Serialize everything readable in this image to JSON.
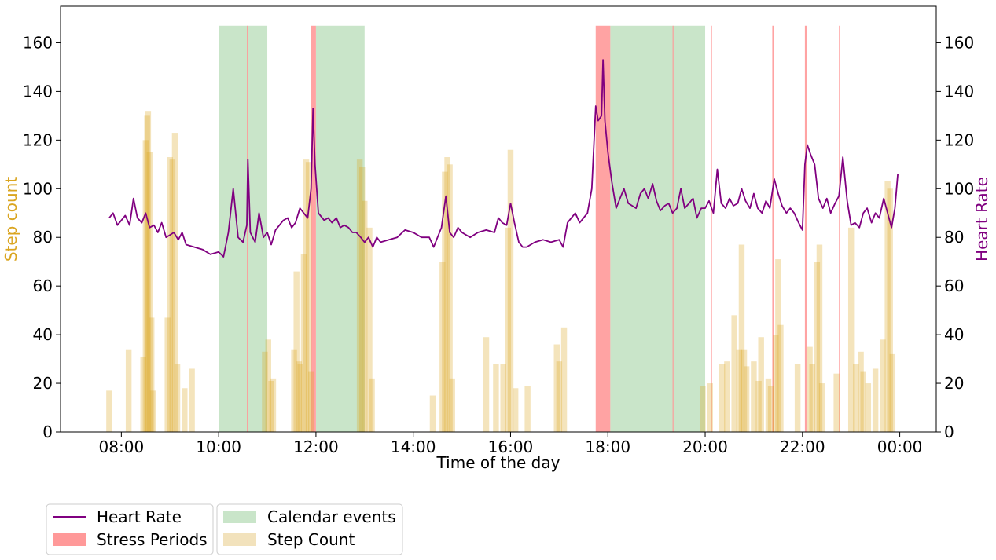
{
  "chart_data": {
    "type": "line",
    "xlabel": "Time of the day",
    "ylabel_left": "Step count",
    "ylabel_right": "Heart Rate",
    "colors": {
      "heart_rate": "#800080",
      "steps": "#DAA520",
      "stress": "#FF9999",
      "calendar": "#C9E5C9",
      "left_label": "#DAA520",
      "right_label": "#800080"
    },
    "x_range_hours": [
      6.75,
      24.75
    ],
    "ylim_left": [
      0,
      175
    ],
    "ylim_right": [
      0,
      175
    ],
    "x_ticks": [
      {
        "hour": 8,
        "label": "08:00"
      },
      {
        "hour": 10,
        "label": "10:00"
      },
      {
        "hour": 12,
        "label": "12:00"
      },
      {
        "hour": 14,
        "label": "14:00"
      },
      {
        "hour": 16,
        "label": "16:00"
      },
      {
        "hour": 18,
        "label": "18:00"
      },
      {
        "hour": 20,
        "label": "20:00"
      },
      {
        "hour": 22,
        "label": "22:00"
      },
      {
        "hour": 24,
        "label": "00:00"
      }
    ],
    "y_ticks": [
      "0",
      "20",
      "40",
      "60",
      "80",
      "100",
      "120",
      "140",
      "160"
    ],
    "legend": {
      "placement": "below-left",
      "entries": [
        {
          "label": "Heart Rate",
          "kind": "line",
          "color": "#800080"
        },
        {
          "label": "Stress Periods",
          "kind": "patch",
          "color": "#FF9999"
        },
        {
          "label": "Calendar events",
          "kind": "patch",
          "color": "#C9E5C9"
        },
        {
          "label": "Step Count",
          "kind": "patch",
          "color": "#F2E2BC"
        }
      ]
    },
    "calendar_events": [
      {
        "start": 10.0,
        "end": 11.0
      },
      {
        "start": 12.0,
        "end": 13.0
      },
      {
        "start": 18.05,
        "end": 20.0
      }
    ],
    "stress_periods": [
      {
        "start": 10.58,
        "end": 10.6
      },
      {
        "start": 11.9,
        "end": 12.0
      },
      {
        "start": 17.75,
        "end": 18.05
      },
      {
        "start": 19.33,
        "end": 19.35
      },
      {
        "start": 20.12,
        "end": 20.14
      },
      {
        "start": 21.38,
        "end": 21.42
      },
      {
        "start": 22.05,
        "end": 22.1
      },
      {
        "start": 22.75,
        "end": 22.77
      }
    ],
    "band_top": 167,
    "series": [
      {
        "name": "Step Count",
        "axis": "left",
        "bar_width_hours": 0.12,
        "points": [
          [
            7.75,
            17
          ],
          [
            8.15,
            34
          ],
          [
            8.45,
            31
          ],
          [
            8.5,
            120
          ],
          [
            8.53,
            130
          ],
          [
            8.55,
            132
          ],
          [
            8.58,
            115
          ],
          [
            8.62,
            47
          ],
          [
            8.65,
            17
          ],
          [
            8.95,
            47
          ],
          [
            9.0,
            113
          ],
          [
            9.05,
            112
          ],
          [
            9.1,
            123
          ],
          [
            9.15,
            28
          ],
          [
            9.3,
            18
          ],
          [
            9.45,
            26
          ],
          [
            10.95,
            33
          ],
          [
            11.02,
            38
          ],
          [
            11.08,
            21
          ],
          [
            11.12,
            22
          ],
          [
            11.55,
            34
          ],
          [
            11.6,
            66
          ],
          [
            11.65,
            29
          ],
          [
            11.68,
            28
          ],
          [
            11.75,
            73
          ],
          [
            11.8,
            112
          ],
          [
            11.85,
            111
          ],
          [
            11.9,
            25
          ],
          [
            12.9,
            112
          ],
          [
            12.95,
            109
          ],
          [
            13.0,
            95
          ],
          [
            13.1,
            84
          ],
          [
            13.15,
            22
          ],
          [
            14.4,
            15
          ],
          [
            14.6,
            70
          ],
          [
            14.65,
            107
          ],
          [
            14.7,
            113
          ],
          [
            14.75,
            110
          ],
          [
            14.8,
            22
          ],
          [
            15.5,
            39
          ],
          [
            15.7,
            28
          ],
          [
            15.85,
            28
          ],
          [
            15.95,
            84
          ],
          [
            16.0,
            116
          ],
          [
            16.1,
            18
          ],
          [
            16.35,
            19
          ],
          [
            16.95,
            36
          ],
          [
            17.0,
            29
          ],
          [
            17.1,
            43
          ],
          [
            19.95,
            19
          ],
          [
            20.1,
            20
          ],
          [
            20.35,
            28
          ],
          [
            20.45,
            29
          ],
          [
            20.6,
            48
          ],
          [
            20.7,
            34
          ],
          [
            20.75,
            77
          ],
          [
            20.8,
            34
          ],
          [
            20.85,
            27
          ],
          [
            21.0,
            29
          ],
          [
            21.1,
            21
          ],
          [
            21.15,
            39
          ],
          [
            21.3,
            22
          ],
          [
            21.35,
            19
          ],
          [
            21.45,
            40
          ],
          [
            21.5,
            71
          ],
          [
            21.55,
            44
          ],
          [
            21.9,
            28
          ],
          [
            22.15,
            35
          ],
          [
            22.2,
            28
          ],
          [
            22.3,
            70
          ],
          [
            22.35,
            77
          ],
          [
            22.4,
            20
          ],
          [
            22.7,
            24
          ],
          [
            23.0,
            84
          ],
          [
            23.1,
            28
          ],
          [
            23.2,
            33
          ],
          [
            23.25,
            25
          ],
          [
            23.35,
            20
          ],
          [
            23.5,
            26
          ],
          [
            23.65,
            38
          ],
          [
            23.75,
            103
          ],
          [
            23.8,
            100
          ],
          [
            23.85,
            32
          ]
        ]
      },
      {
        "name": "Heart Rate",
        "axis": "right",
        "points": [
          [
            7.75,
            88
          ],
          [
            7.83,
            90
          ],
          [
            7.92,
            85
          ],
          [
            8.0,
            87
          ],
          [
            8.08,
            89
          ],
          [
            8.17,
            85
          ],
          [
            8.25,
            96
          ],
          [
            8.33,
            88
          ],
          [
            8.42,
            86
          ],
          [
            8.5,
            90
          ],
          [
            8.58,
            84
          ],
          [
            8.67,
            85
          ],
          [
            8.75,
            82
          ],
          [
            8.83,
            86
          ],
          [
            8.92,
            80
          ],
          [
            9.0,
            81
          ],
          [
            9.08,
            82
          ],
          [
            9.17,
            79
          ],
          [
            9.25,
            82
          ],
          [
            9.33,
            77
          ],
          [
            9.5,
            76
          ],
          [
            9.67,
            75
          ],
          [
            9.83,
            73
          ],
          [
            10.0,
            74
          ],
          [
            10.1,
            72
          ],
          [
            10.2,
            82
          ],
          [
            10.3,
            100
          ],
          [
            10.4,
            80
          ],
          [
            10.5,
            78
          ],
          [
            10.58,
            85
          ],
          [
            10.6,
            112
          ],
          [
            10.65,
            82
          ],
          [
            10.75,
            78
          ],
          [
            10.83,
            90
          ],
          [
            10.92,
            80
          ],
          [
            11.0,
            82
          ],
          [
            11.08,
            77
          ],
          [
            11.17,
            83
          ],
          [
            11.25,
            85
          ],
          [
            11.33,
            87
          ],
          [
            11.42,
            88
          ],
          [
            11.5,
            84
          ],
          [
            11.58,
            86
          ],
          [
            11.67,
            92
          ],
          [
            11.75,
            90
          ],
          [
            11.83,
            88
          ],
          [
            11.9,
            100
          ],
          [
            11.94,
            133
          ],
          [
            11.98,
            110
          ],
          [
            12.05,
            90
          ],
          [
            12.17,
            87
          ],
          [
            12.25,
            88
          ],
          [
            12.33,
            86
          ],
          [
            12.42,
            88
          ],
          [
            12.5,
            84
          ],
          [
            12.58,
            85
          ],
          [
            12.67,
            84
          ],
          [
            12.75,
            82
          ],
          [
            12.83,
            82
          ],
          [
            12.92,
            80
          ],
          [
            13.0,
            78
          ],
          [
            13.08,
            80
          ],
          [
            13.17,
            76
          ],
          [
            13.25,
            80
          ],
          [
            13.33,
            78
          ],
          [
            13.5,
            79
          ],
          [
            13.67,
            80
          ],
          [
            13.83,
            83
          ],
          [
            14.0,
            82
          ],
          [
            14.17,
            80
          ],
          [
            14.33,
            80
          ],
          [
            14.42,
            76
          ],
          [
            14.5,
            80
          ],
          [
            14.58,
            84
          ],
          [
            14.67,
            97
          ],
          [
            14.75,
            82
          ],
          [
            14.83,
            80
          ],
          [
            14.92,
            84
          ],
          [
            15.0,
            82
          ],
          [
            15.17,
            80
          ],
          [
            15.33,
            82
          ],
          [
            15.5,
            83
          ],
          [
            15.67,
            82
          ],
          [
            15.75,
            88
          ],
          [
            15.83,
            86
          ],
          [
            15.92,
            85
          ],
          [
            16.0,
            94
          ],
          [
            16.08,
            86
          ],
          [
            16.17,
            78
          ],
          [
            16.25,
            76
          ],
          [
            16.33,
            76
          ],
          [
            16.5,
            78
          ],
          [
            16.67,
            79
          ],
          [
            16.83,
            78
          ],
          [
            17.0,
            79
          ],
          [
            17.08,
            76
          ],
          [
            17.17,
            86
          ],
          [
            17.25,
            88
          ],
          [
            17.33,
            90
          ],
          [
            17.42,
            86
          ],
          [
            17.5,
            88
          ],
          [
            17.58,
            90
          ],
          [
            17.67,
            100
          ],
          [
            17.75,
            134
          ],
          [
            17.8,
            128
          ],
          [
            17.87,
            130
          ],
          [
            17.9,
            153
          ],
          [
            17.94,
            128
          ],
          [
            18.0,
            115
          ],
          [
            18.08,
            103
          ],
          [
            18.17,
            92
          ],
          [
            18.25,
            96
          ],
          [
            18.33,
            100
          ],
          [
            18.42,
            94
          ],
          [
            18.5,
            93
          ],
          [
            18.58,
            92
          ],
          [
            18.67,
            98
          ],
          [
            18.75,
            100
          ],
          [
            18.83,
            96
          ],
          [
            18.92,
            102
          ],
          [
            19.0,
            95
          ],
          [
            19.08,
            91
          ],
          [
            19.17,
            93
          ],
          [
            19.25,
            94
          ],
          [
            19.33,
            90
          ],
          [
            19.42,
            92
          ],
          [
            19.5,
            100
          ],
          [
            19.58,
            92
          ],
          [
            19.67,
            94
          ],
          [
            19.75,
            96
          ],
          [
            19.83,
            88
          ],
          [
            19.92,
            92
          ],
          [
            20.0,
            92
          ],
          [
            20.08,
            95
          ],
          [
            20.17,
            90
          ],
          [
            20.25,
            108
          ],
          [
            20.33,
            94
          ],
          [
            20.42,
            92
          ],
          [
            20.5,
            96
          ],
          [
            20.58,
            93
          ],
          [
            20.67,
            94
          ],
          [
            20.75,
            100
          ],
          [
            20.83,
            95
          ],
          [
            20.92,
            92
          ],
          [
            21.0,
            98
          ],
          [
            21.08,
            92
          ],
          [
            21.17,
            90
          ],
          [
            21.25,
            95
          ],
          [
            21.33,
            92
          ],
          [
            21.42,
            104
          ],
          [
            21.5,
            98
          ],
          [
            21.58,
            93
          ],
          [
            21.67,
            90
          ],
          [
            21.75,
            92
          ],
          [
            21.83,
            90
          ],
          [
            21.92,
            86
          ],
          [
            22.0,
            83
          ],
          [
            22.05,
            110
          ],
          [
            22.1,
            118
          ],
          [
            22.17,
            114
          ],
          [
            22.25,
            110
          ],
          [
            22.33,
            96
          ],
          [
            22.42,
            92
          ],
          [
            22.5,
            96
          ],
          [
            22.58,
            90
          ],
          [
            22.67,
            94
          ],
          [
            22.75,
            97
          ],
          [
            22.83,
            113
          ],
          [
            22.92,
            95
          ],
          [
            23.0,
            85
          ],
          [
            23.08,
            86
          ],
          [
            23.17,
            84
          ],
          [
            23.25,
            90
          ],
          [
            23.33,
            92
          ],
          [
            23.42,
            86
          ],
          [
            23.5,
            90
          ],
          [
            23.58,
            88
          ],
          [
            23.67,
            96
          ],
          [
            23.75,
            90
          ],
          [
            23.83,
            84
          ],
          [
            23.9,
            92
          ],
          [
            23.96,
            106
          ]
        ]
      }
    ]
  }
}
